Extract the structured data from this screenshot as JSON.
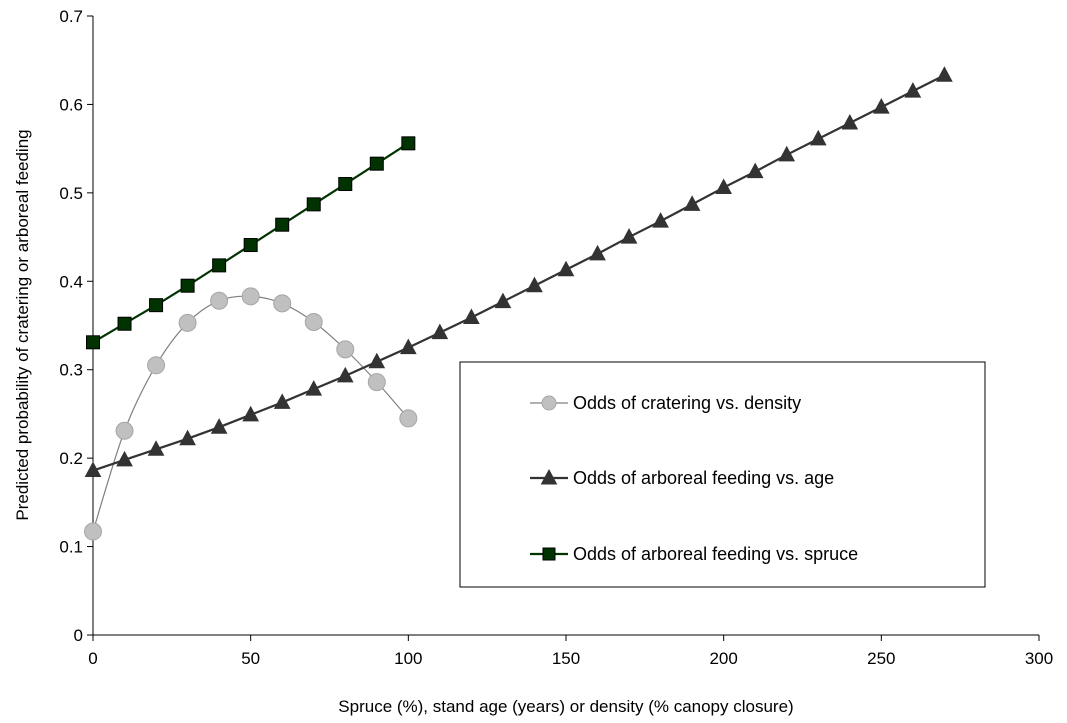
{
  "chart_data": {
    "type": "line",
    "title": "",
    "xlabel": "Spruce (%), stand age (years) or density (% canopy closure)",
    "ylabel": "Predicted probability of cratering or arboreal feeding",
    "xlim": [
      0,
      300
    ],
    "ylim": [
      0,
      0.7
    ],
    "x_ticks": [
      0,
      50,
      100,
      150,
      200,
      250,
      300
    ],
    "y_ticks": [
      0,
      0.1,
      0.2,
      0.3,
      0.4,
      0.5,
      0.6,
      0.7
    ],
    "x_tick_labels": [
      "0",
      "50",
      "100",
      "150",
      "200",
      "250",
      "300"
    ],
    "y_tick_labels": [
      "0",
      "0.1",
      "0.2",
      "0.3",
      "0.4",
      "0.5",
      "0.6",
      "0.7"
    ],
    "grid": false,
    "legend_position": "center-right",
    "series": [
      {
        "name": "Odds of cratering vs. density",
        "marker": "circle",
        "line_color": "#808080",
        "marker_fill": "#c0c0c0",
        "marker_stroke": "#a6a6a6",
        "smooth": true,
        "x": [
          0,
          10,
          20,
          30,
          40,
          50,
          60,
          70,
          80,
          90,
          100
        ],
        "y": [
          0.117,
          0.231,
          0.305,
          0.353,
          0.378,
          0.383,
          0.375,
          0.354,
          0.323,
          0.286,
          0.245
        ]
      },
      {
        "name": "Odds of arboreal feeding vs. age",
        "marker": "triangle",
        "line_color": "#333333",
        "marker_fill": "#333333",
        "marker_stroke": "#333333",
        "smooth": false,
        "x": [
          0,
          10,
          20,
          30,
          40,
          50,
          60,
          70,
          80,
          90,
          100,
          110,
          120,
          130,
          140,
          150,
          160,
          170,
          180,
          190,
          200,
          210,
          220,
          230,
          240,
          250,
          260,
          270
        ],
        "y": [
          0.186,
          0.198,
          0.21,
          0.222,
          0.235,
          0.249,
          0.263,
          0.278,
          0.293,
          0.309,
          0.325,
          0.342,
          0.359,
          0.377,
          0.395,
          0.413,
          0.431,
          0.45,
          0.468,
          0.487,
          0.506,
          0.524,
          0.543,
          0.561,
          0.579,
          0.597,
          0.615,
          0.633
        ]
      },
      {
        "name": "Odds of arboreal feeding vs. spruce",
        "marker": "square",
        "line_color": "#003300",
        "marker_fill": "#003300",
        "marker_stroke": "#000000",
        "smooth": false,
        "x": [
          0,
          10,
          20,
          30,
          40,
          50,
          60,
          70,
          80,
          90,
          100
        ],
        "y": [
          0.331,
          0.352,
          0.373,
          0.395,
          0.418,
          0.441,
          0.464,
          0.487,
          0.51,
          0.533,
          0.556
        ]
      }
    ]
  }
}
